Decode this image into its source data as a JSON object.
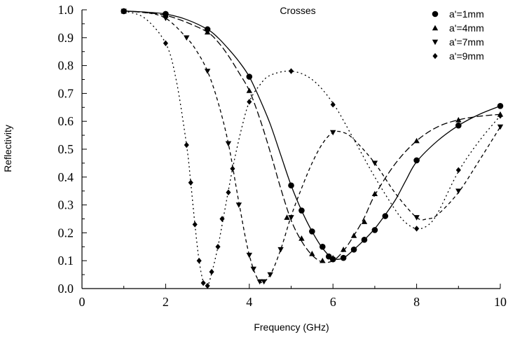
{
  "chart_data": {
    "type": "line",
    "title": "Crosses",
    "xlabel": "Frequency (GHz)",
    "ylabel": "Reflectivity",
    "xlim": [
      0,
      10
    ],
    "ylim": [
      0.0,
      1.0
    ],
    "x_ticks": [
      "0",
      "2",
      "4",
      "6",
      "8",
      "10"
    ],
    "y_ticks": [
      "0.0",
      "0.1",
      "0.2",
      "0.3",
      "0.4",
      "0.5",
      "0.6",
      "0.7",
      "0.8",
      "0.9",
      "1.0"
    ],
    "grid": false,
    "legend_position": "top-right",
    "series": [
      {
        "name": "a'=1mm",
        "marker": "circle",
        "line_style": "solid",
        "color": "#000000",
        "points": [
          [
            1.0,
            0.995
          ],
          [
            2.0,
            0.985
          ],
          [
            3.0,
            0.93
          ],
          [
            4.0,
            0.76
          ],
          [
            5.0,
            0.37
          ],
          [
            5.25,
            0.28
          ],
          [
            5.5,
            0.205
          ],
          [
            5.75,
            0.15
          ],
          [
            5.9,
            0.115
          ],
          [
            6.0,
            0.105
          ],
          [
            6.25,
            0.11
          ],
          [
            6.5,
            0.14
          ],
          [
            6.75,
            0.175
          ],
          [
            7.0,
            0.21
          ],
          [
            7.25,
            0.26
          ],
          [
            8.0,
            0.46
          ],
          [
            9.0,
            0.585
          ],
          [
            10.0,
            0.655
          ]
        ],
        "curve": [
          [
            1.0,
            0.996
          ],
          [
            1.5,
            0.992
          ],
          [
            2.0,
            0.985
          ],
          [
            2.5,
            0.965
          ],
          [
            3.0,
            0.93
          ],
          [
            3.25,
            0.9
          ],
          [
            3.5,
            0.86
          ],
          [
            3.75,
            0.815
          ],
          [
            4.0,
            0.76
          ],
          [
            4.25,
            0.68
          ],
          [
            4.5,
            0.59
          ],
          [
            4.75,
            0.48
          ],
          [
            5.0,
            0.37
          ],
          [
            5.25,
            0.28
          ],
          [
            5.5,
            0.205
          ],
          [
            5.75,
            0.145
          ],
          [
            6.0,
            0.108
          ],
          [
            6.25,
            0.11
          ],
          [
            6.5,
            0.14
          ],
          [
            6.75,
            0.175
          ],
          [
            7.0,
            0.215
          ],
          [
            7.25,
            0.265
          ],
          [
            7.5,
            0.32
          ],
          [
            7.75,
            0.39
          ],
          [
            8.0,
            0.455
          ],
          [
            8.5,
            0.53
          ],
          [
            9.0,
            0.585
          ],
          [
            9.5,
            0.625
          ],
          [
            10.0,
            0.655
          ]
        ]
      },
      {
        "name": "a'=4mm",
        "marker": "triangle-up",
        "line_style": "long-dash",
        "color": "#000000",
        "points": [
          [
            1.0,
            0.995
          ],
          [
            2.0,
            0.98
          ],
          [
            3.0,
            0.92
          ],
          [
            4.0,
            0.71
          ],
          [
            4.9,
            0.255
          ],
          [
            5.25,
            0.18
          ],
          [
            5.5,
            0.125
          ],
          [
            5.75,
            0.1
          ],
          [
            6.0,
            0.11
          ],
          [
            6.25,
            0.14
          ],
          [
            6.5,
            0.19
          ],
          [
            6.75,
            0.24
          ],
          [
            7.0,
            0.34
          ],
          [
            8.0,
            0.53
          ],
          [
            9.0,
            0.605
          ],
          [
            10.0,
            0.625
          ]
        ],
        "curve": [
          [
            1.0,
            0.996
          ],
          [
            1.5,
            0.99
          ],
          [
            2.0,
            0.98
          ],
          [
            2.5,
            0.955
          ],
          [
            3.0,
            0.92
          ],
          [
            3.25,
            0.885
          ],
          [
            3.5,
            0.835
          ],
          [
            3.75,
            0.775
          ],
          [
            4.0,
            0.71
          ],
          [
            4.25,
            0.61
          ],
          [
            4.5,
            0.49
          ],
          [
            4.75,
            0.36
          ],
          [
            5.0,
            0.245
          ],
          [
            5.25,
            0.17
          ],
          [
            5.5,
            0.12
          ],
          [
            5.75,
            0.095
          ],
          [
            6.0,
            0.1
          ],
          [
            6.25,
            0.135
          ],
          [
            6.5,
            0.19
          ],
          [
            6.75,
            0.255
          ],
          [
            7.0,
            0.335
          ],
          [
            7.5,
            0.45
          ],
          [
            8.0,
            0.53
          ],
          [
            8.5,
            0.58
          ],
          [
            9.0,
            0.605
          ],
          [
            9.5,
            0.618
          ],
          [
            10.0,
            0.625
          ]
        ]
      },
      {
        "name": "a'=7mm",
        "marker": "triangle-down",
        "line_style": "short-dash",
        "color": "#000000",
        "points": [
          [
            1.0,
            0.995
          ],
          [
            2.0,
            0.97
          ],
          [
            2.5,
            0.9
          ],
          [
            3.0,
            0.78
          ],
          [
            3.5,
            0.52
          ],
          [
            3.75,
            0.3
          ],
          [
            4.0,
            0.12
          ],
          [
            4.1,
            0.07
          ],
          [
            4.25,
            0.025
          ],
          [
            4.35,
            0.025
          ],
          [
            4.5,
            0.05
          ],
          [
            4.75,
            0.14
          ],
          [
            5.0,
            0.255
          ],
          [
            6.0,
            0.56
          ],
          [
            7.0,
            0.45
          ],
          [
            8.0,
            0.255
          ],
          [
            9.0,
            0.35
          ],
          [
            10.0,
            0.58
          ]
        ],
        "curve": [
          [
            1.0,
            0.996
          ],
          [
            1.5,
            0.99
          ],
          [
            2.0,
            0.97
          ],
          [
            2.5,
            0.9
          ],
          [
            2.75,
            0.85
          ],
          [
            3.0,
            0.78
          ],
          [
            3.25,
            0.67
          ],
          [
            3.5,
            0.52
          ],
          [
            3.75,
            0.31
          ],
          [
            4.0,
            0.12
          ],
          [
            4.25,
            0.025
          ],
          [
            4.5,
            0.05
          ],
          [
            4.75,
            0.14
          ],
          [
            5.0,
            0.26
          ],
          [
            5.25,
            0.36
          ],
          [
            5.5,
            0.45
          ],
          [
            5.75,
            0.52
          ],
          [
            6.0,
            0.56
          ],
          [
            6.25,
            0.56
          ],
          [
            6.5,
            0.535
          ],
          [
            7.0,
            0.45
          ],
          [
            7.5,
            0.34
          ],
          [
            8.0,
            0.255
          ],
          [
            8.25,
            0.25
          ],
          [
            8.5,
            0.265
          ],
          [
            9.0,
            0.345
          ],
          [
            9.5,
            0.46
          ],
          [
            10.0,
            0.58
          ]
        ]
      },
      {
        "name": "a'=9mm",
        "marker": "diamond",
        "line_style": "dotted",
        "color": "#000000",
        "points": [
          [
            1.0,
            0.995
          ],
          [
            2.0,
            0.88
          ],
          [
            2.5,
            0.515
          ],
          [
            2.6,
            0.38
          ],
          [
            2.7,
            0.23
          ],
          [
            2.8,
            0.1
          ],
          [
            2.9,
            0.02
          ],
          [
            3.0,
            0.01
          ],
          [
            3.1,
            0.06
          ],
          [
            3.25,
            0.15
          ],
          [
            3.35,
            0.25
          ],
          [
            3.5,
            0.345
          ],
          [
            3.6,
            0.43
          ],
          [
            4.0,
            0.67
          ],
          [
            5.0,
            0.78
          ],
          [
            6.0,
            0.66
          ],
          [
            8.0,
            0.215
          ],
          [
            9.0,
            0.425
          ],
          [
            10.0,
            0.62
          ]
        ],
        "curve": [
          [
            1.0,
            0.996
          ],
          [
            1.5,
            0.97
          ],
          [
            2.0,
            0.88
          ],
          [
            2.25,
            0.75
          ],
          [
            2.5,
            0.515
          ],
          [
            2.6,
            0.38
          ],
          [
            2.7,
            0.23
          ],
          [
            2.8,
            0.1
          ],
          [
            2.9,
            0.025
          ],
          [
            3.0,
            0.01
          ],
          [
            3.1,
            0.055
          ],
          [
            3.25,
            0.15
          ],
          [
            3.4,
            0.27
          ],
          [
            3.6,
            0.43
          ],
          [
            3.8,
            0.565
          ],
          [
            4.0,
            0.67
          ],
          [
            4.25,
            0.73
          ],
          [
            4.5,
            0.765
          ],
          [
            5.0,
            0.78
          ],
          [
            5.5,
            0.75
          ],
          [
            6.0,
            0.665
          ],
          [
            6.5,
            0.535
          ],
          [
            7.0,
            0.4
          ],
          [
            7.5,
            0.28
          ],
          [
            7.75,
            0.235
          ],
          [
            8.0,
            0.215
          ],
          [
            8.25,
            0.225
          ],
          [
            8.5,
            0.27
          ],
          [
            9.0,
            0.42
          ],
          [
            9.5,
            0.53
          ],
          [
            10.0,
            0.62
          ]
        ]
      }
    ]
  }
}
